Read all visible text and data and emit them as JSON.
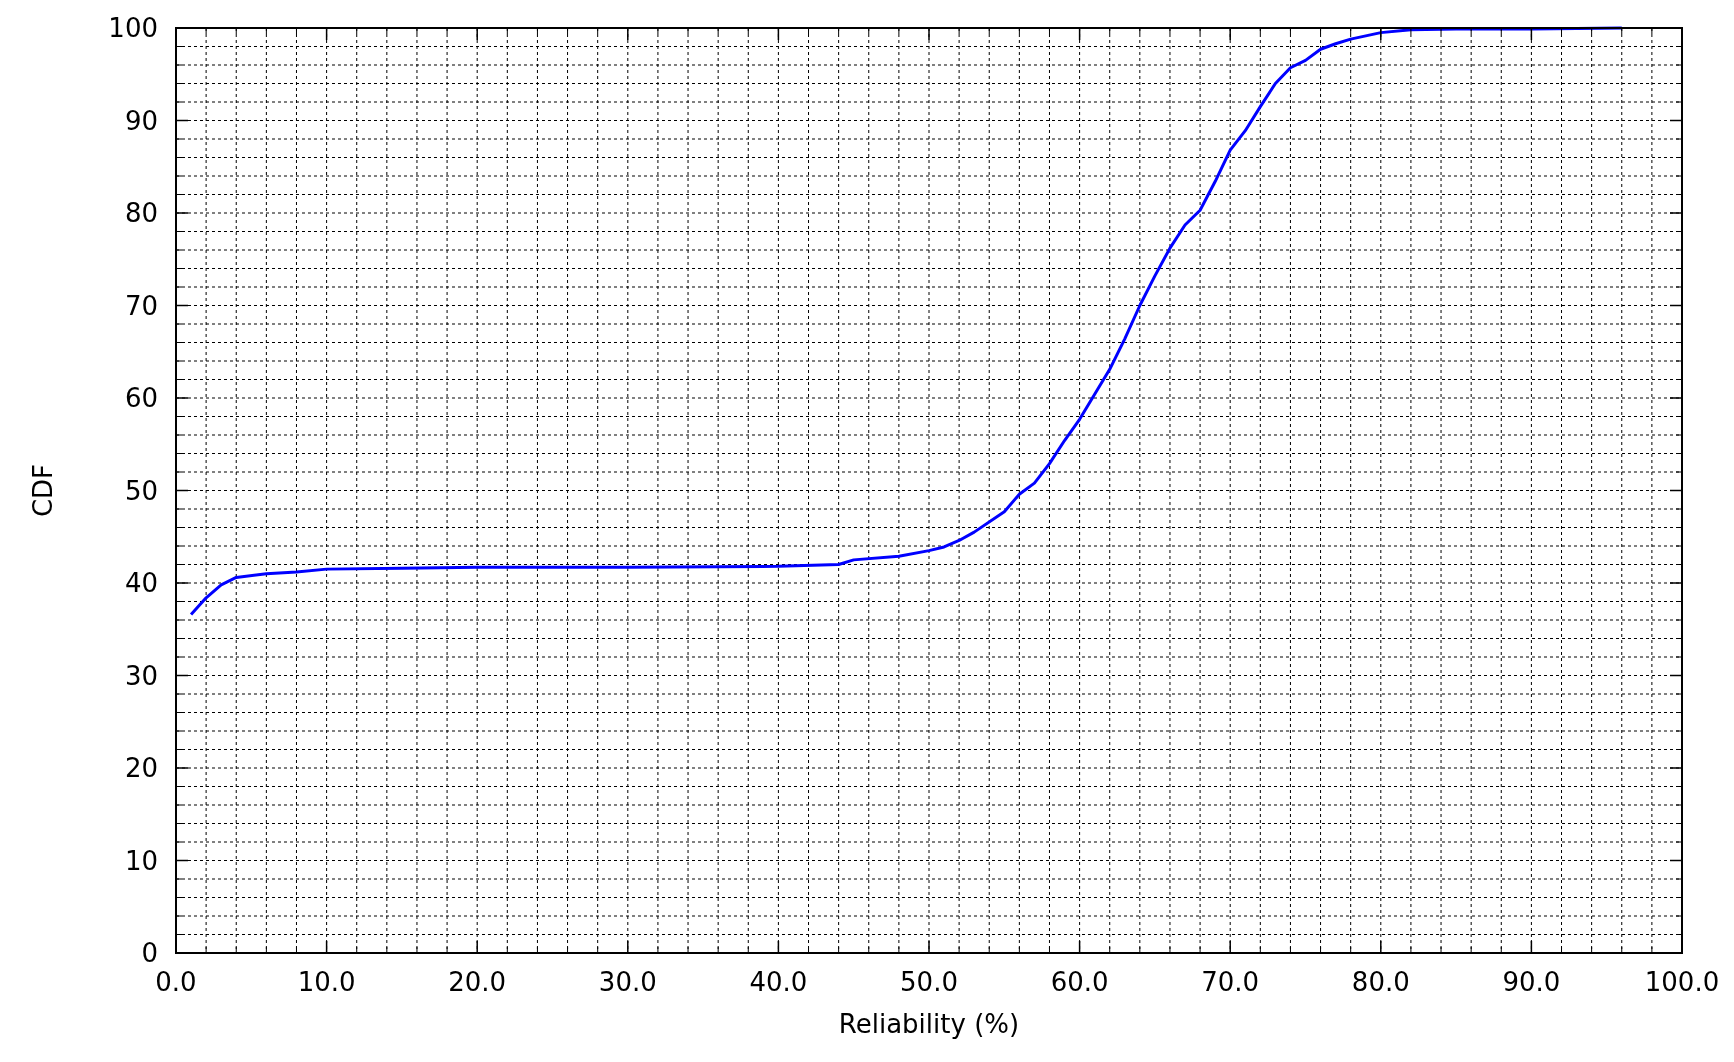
{
  "chart_data": {
    "type": "line",
    "xlabel": "Reliability (%)",
    "ylabel": "CDF",
    "xlim": [
      0,
      100
    ],
    "ylim": [
      0,
      100
    ],
    "xticks": [
      {
        "value": 0,
        "label": "0.0"
      },
      {
        "value": 10,
        "label": "10.0"
      },
      {
        "value": 20,
        "label": "20.0"
      },
      {
        "value": 30,
        "label": "30.0"
      },
      {
        "value": 40,
        "label": "40.0"
      },
      {
        "value": 50,
        "label": "50.0"
      },
      {
        "value": 60,
        "label": "60.0"
      },
      {
        "value": 70,
        "label": "70.0"
      },
      {
        "value": 80,
        "label": "80.0"
      },
      {
        "value": 90,
        "label": "90.0"
      },
      {
        "value": 100,
        "label": "100.0"
      }
    ],
    "yticks": [
      0,
      10,
      20,
      30,
      40,
      50,
      60,
      70,
      80,
      90,
      100
    ],
    "grid": true,
    "marker": "none",
    "line_style": "solid",
    "series": [
      {
        "color": "#0000ff",
        "x": [
          1,
          2,
          3,
          4,
          6,
          8,
          10,
          15,
          20,
          30,
          40,
          44,
          45,
          48,
          50,
          51,
          52,
          53,
          55,
          56,
          57,
          58,
          59,
          60,
          61,
          62,
          63,
          64,
          65,
          66,
          67,
          68,
          69,
          70,
          71,
          72,
          73,
          74,
          75,
          76,
          77,
          78,
          80,
          82,
          85,
          90,
          96
        ],
        "values": [
          36.6,
          38.4,
          39.8,
          40.6,
          41.0,
          41.2,
          41.5,
          41.6,
          41.7,
          41.7,
          41.8,
          42.0,
          42.5,
          42.9,
          43.5,
          43.9,
          44.6,
          45.5,
          47.7,
          49.6,
          50.8,
          52.9,
          55.4,
          57.7,
          60.4,
          63.1,
          66.4,
          70.0,
          73.2,
          76.2,
          78.7,
          80.3,
          83.4,
          86.8,
          88.9,
          91.5,
          94.0,
          95.7,
          96.5,
          97.7,
          98.3,
          98.8,
          99.5,
          99.8,
          99.9,
          99.9,
          100
        ]
      }
    ]
  }
}
